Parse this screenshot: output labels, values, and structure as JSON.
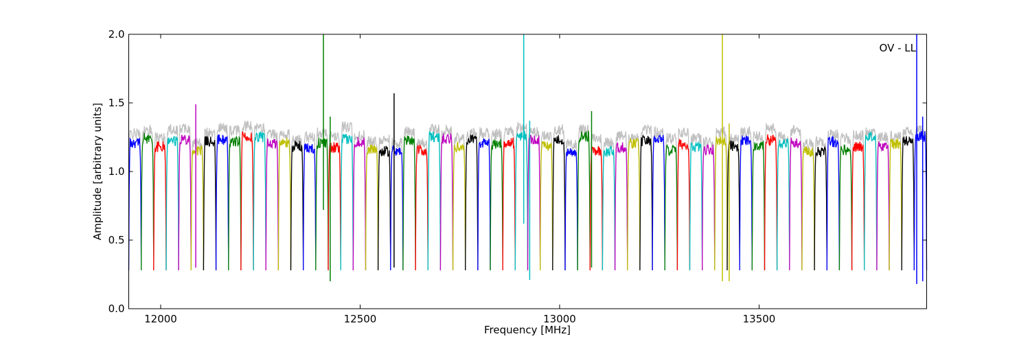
{
  "chart_data": {
    "type": "line",
    "xlabel": "Frequency [MHz]",
    "ylabel": "Amplitude [arbitrary units]",
    "annotation": "OV - LL",
    "xlim": [
      11920,
      13920
    ],
    "ylim": [
      0.0,
      2.0
    ],
    "x_ticks": [
      12000,
      12500,
      13000,
      13500
    ],
    "y_ticks": [
      0.0,
      0.5,
      1.0,
      1.5,
      2.0
    ],
    "x_tick_labels": [
      "12000",
      "12500",
      "13000",
      "13500"
    ],
    "y_tick_labels": [
      "0.0",
      "0.5",
      "1.0",
      "1.5",
      "2.0"
    ],
    "grid": false,
    "legend": "none",
    "colors": [
      "#0000ff",
      "#008000",
      "#ff0000",
      "#00bfbf",
      "#bf00bf",
      "#bfbf00",
      "#000000"
    ],
    "background_series_color": "#c0c0c0",
    "channel_width_mhz": 31.25,
    "n_channels": 64,
    "channel_start_mhz": 11920,
    "channel_shape": {
      "edge_min": 0.28,
      "plateau": 1.2,
      "rolloff_fraction": 0.12
    },
    "spikes": [
      {
        "x": 12408,
        "y_min": 0.72,
        "y_max": 2.0,
        "color": "#008000"
      },
      {
        "x": 12425,
        "y_min": 0.2,
        "y_max": 1.4,
        "color": "#008000"
      },
      {
        "x": 12585,
        "y_min": 0.3,
        "y_max": 1.57,
        "color": "#000000"
      },
      {
        "x": 12910,
        "y_min": 0.62,
        "y_max": 2.0,
        "color": "#00bfbf"
      },
      {
        "x": 12925,
        "y_min": 0.21,
        "y_max": 1.37,
        "color": "#00bfbf"
      },
      {
        "x": 13080,
        "y_min": 0.3,
        "y_max": 1.44,
        "color": "#008000"
      },
      {
        "x": 12088,
        "y_min": 0.3,
        "y_max": 1.49,
        "color": "#bf00bf"
      },
      {
        "x": 13408,
        "y_min": 0.2,
        "y_max": 2.0,
        "color": "#bfbf00"
      },
      {
        "x": 13425,
        "y_min": 0.2,
        "y_max": 1.35,
        "color": "#bfbf00"
      },
      {
        "x": 13895,
        "y_min": 0.18,
        "y_max": 2.0,
        "color": "#0000ff"
      },
      {
        "x": 13910,
        "y_min": 0.2,
        "y_max": 1.4,
        "color": "#0000ff"
      }
    ]
  }
}
